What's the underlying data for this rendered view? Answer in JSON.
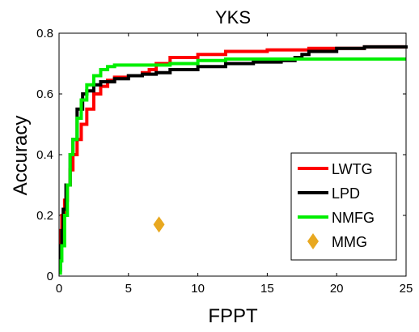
{
  "chart_data": {
    "type": "line",
    "title": "YKS",
    "xlabel": "FPPT",
    "ylabel": "Accuracy",
    "xlim": [
      0,
      25
    ],
    "ylim": [
      0,
      0.8
    ],
    "xticks": [
      0,
      5,
      10,
      15,
      20,
      25
    ],
    "xtick_labels": [
      "0",
      "5",
      "10",
      "15",
      "20",
      "25"
    ],
    "yticks": [
      0,
      0.2,
      0.4,
      0.6,
      0.8
    ],
    "ytick_labels": [
      "0",
      "0.2",
      "0.4",
      "0.6",
      "0.8"
    ],
    "grid": false,
    "legend_position": "bottom-right",
    "series": [
      {
        "name": "LWTG",
        "color": "#ff0000",
        "style": "line",
        "x": [
          0,
          0.1,
          0.2,
          0.4,
          0.6,
          0.8,
          1.0,
          1.3,
          1.6,
          2.0,
          2.5,
          3.0,
          3.5,
          4.0,
          5.0,
          6.0,
          6.5,
          7.0,
          8.0,
          10.0,
          12.0,
          15.0,
          18.0,
          20.0,
          22.0,
          25.0
        ],
        "y": [
          0.1,
          0.15,
          0.2,
          0.25,
          0.3,
          0.35,
          0.4,
          0.45,
          0.5,
          0.55,
          0.6,
          0.625,
          0.645,
          0.655,
          0.66,
          0.67,
          0.68,
          0.7,
          0.72,
          0.73,
          0.74,
          0.745,
          0.75,
          0.75,
          0.755,
          0.76
        ]
      },
      {
        "name": "LPD",
        "color": "#000000",
        "style": "line",
        "x": [
          0,
          0.1,
          0.2,
          0.3,
          0.5,
          0.8,
          1.0,
          1.3,
          1.7,
          2.0,
          2.5,
          3.0,
          4.0,
          5.0,
          6.0,
          7.0,
          8.0,
          10.0,
          12.0,
          14.0,
          16.0,
          17.0,
          17.5,
          18.0,
          20.0,
          22.0,
          25.0
        ],
        "y": [
          0.02,
          0.1,
          0.15,
          0.22,
          0.3,
          0.4,
          0.45,
          0.55,
          0.6,
          0.61,
          0.63,
          0.64,
          0.65,
          0.66,
          0.665,
          0.67,
          0.68,
          0.69,
          0.7,
          0.705,
          0.71,
          0.72,
          0.73,
          0.74,
          0.75,
          0.755,
          0.76
        ]
      },
      {
        "name": "NMFG",
        "color": "#00ee00",
        "style": "line",
        "x": [
          0,
          0.1,
          0.2,
          0.4,
          0.6,
          0.8,
          1.0,
          1.3,
          1.6,
          2.0,
          2.5,
          3.0,
          3.5,
          4.0,
          5.0,
          6.0,
          8.0,
          10.0,
          12.0,
          15.0,
          20.0,
          25.0
        ],
        "y": [
          0.01,
          0.05,
          0.1,
          0.2,
          0.3,
          0.4,
          0.45,
          0.52,
          0.58,
          0.63,
          0.66,
          0.68,
          0.69,
          0.695,
          0.695,
          0.695,
          0.7,
          0.71,
          0.715,
          0.715,
          0.715,
          0.715
        ]
      },
      {
        "name": "MMG",
        "color": "#e8a820",
        "style": "marker",
        "marker": "diamond",
        "x": [
          7.2
        ],
        "y": [
          0.17
        ]
      }
    ]
  }
}
